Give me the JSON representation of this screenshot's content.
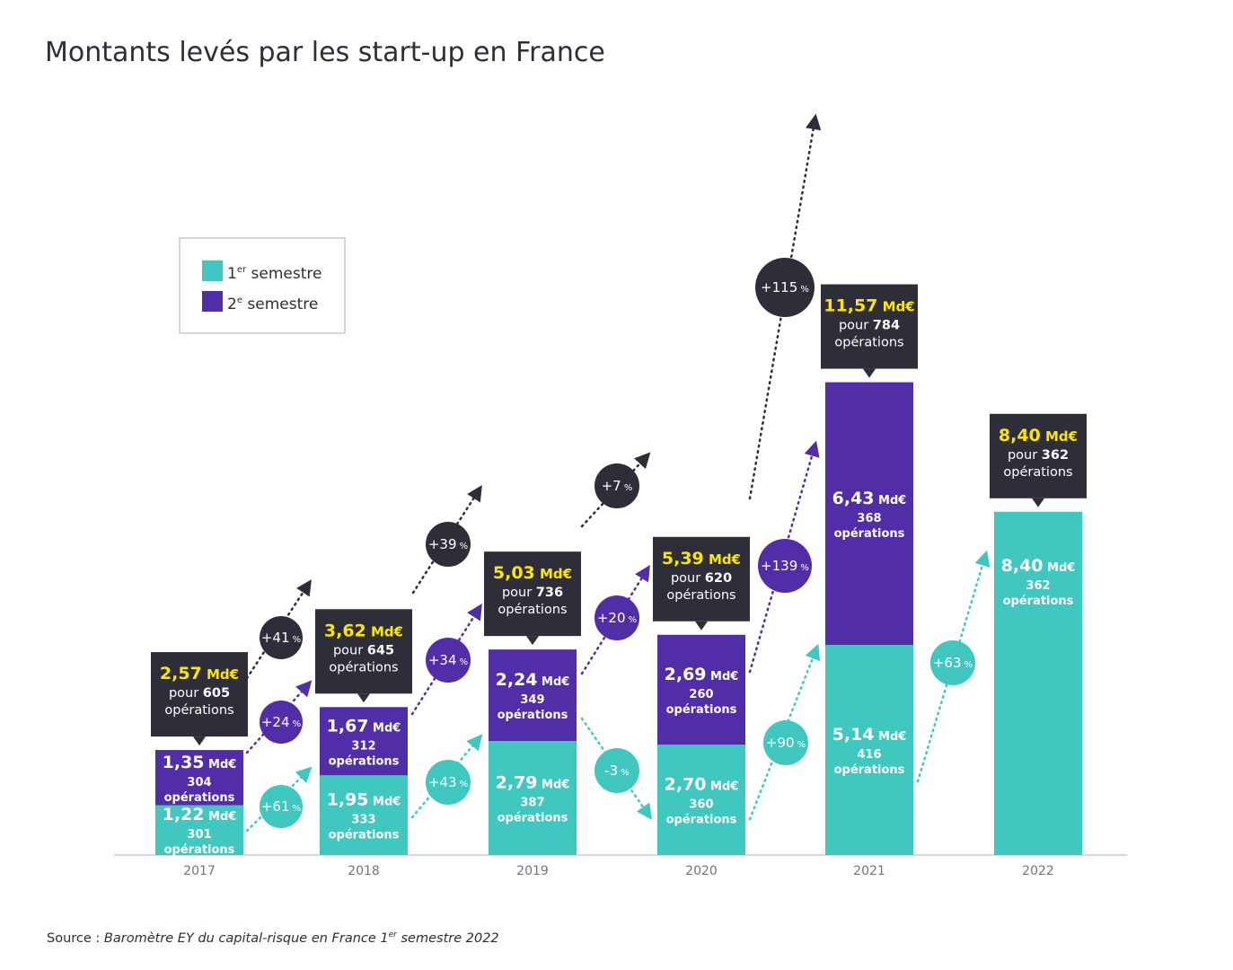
{
  "chart_data": {
    "type": "bar",
    "title": "Montants levés par les start-up en France",
    "categories": [
      "2017",
      "2018",
      "2019",
      "2020",
      "2021",
      "2022"
    ],
    "unit": "Md€",
    "ops_word": "opérations",
    "pour_word": "pour",
    "series": [
      {
        "name": "1er semestre",
        "color": "#40c8c0",
        "values": [
          1.22,
          1.95,
          2.79,
          2.7,
          5.14,
          8.4
        ],
        "value_labels": [
          "1,22",
          "1,95",
          "2,79",
          "2,70",
          "5,14",
          "8,40"
        ],
        "operations": [
          "301",
          "333",
          "387",
          "360",
          "416",
          "362"
        ]
      },
      {
        "name": "2e semestre",
        "color": "#512da8",
        "values": [
          1.35,
          1.67,
          2.24,
          2.69,
          6.43,
          null
        ],
        "value_labels": [
          "1,35",
          "1,67",
          "2,24",
          "2,69",
          "6,43",
          null
        ],
        "operations": [
          "304",
          "312",
          "349",
          "260",
          "368",
          null
        ]
      }
    ],
    "totals": [
      {
        "value": "2,57",
        "operations": "605"
      },
      {
        "value": "3,62",
        "operations": "645"
      },
      {
        "value": "5,03",
        "operations": "736"
      },
      {
        "value": "5,39",
        "operations": "620"
      },
      {
        "value": "11,57",
        "operations": "784"
      },
      {
        "value": "8,40",
        "operations": "362"
      }
    ],
    "growth": {
      "total": [
        "+41",
        "+39",
        "+7",
        "+115"
      ],
      "s2": [
        "+24",
        "+34",
        "+20",
        "+139"
      ],
      "s1": [
        "+61",
        "+43",
        "-3",
        "+90",
        "+63"
      ]
    },
    "pct_symbol": "%",
    "legend": {
      "items": [
        {
          "base": "1",
          "sup": "er",
          "text": " semestre",
          "color": "#40c8c0"
        },
        {
          "base": "2",
          "sup": "e",
          "text": " semestre",
          "color": "#512da8"
        }
      ]
    },
    "source": {
      "prefix": "Source : ",
      "text": "Baromètre EY du capital-risque en France 1",
      "sup": "er",
      "suffix": " semestre 2022"
    },
    "colors": {
      "callout_bg": "#2e2e38",
      "callout_value": "#ffe600",
      "axis": "#c8c8c8",
      "title": "#2e2e38"
    }
  }
}
